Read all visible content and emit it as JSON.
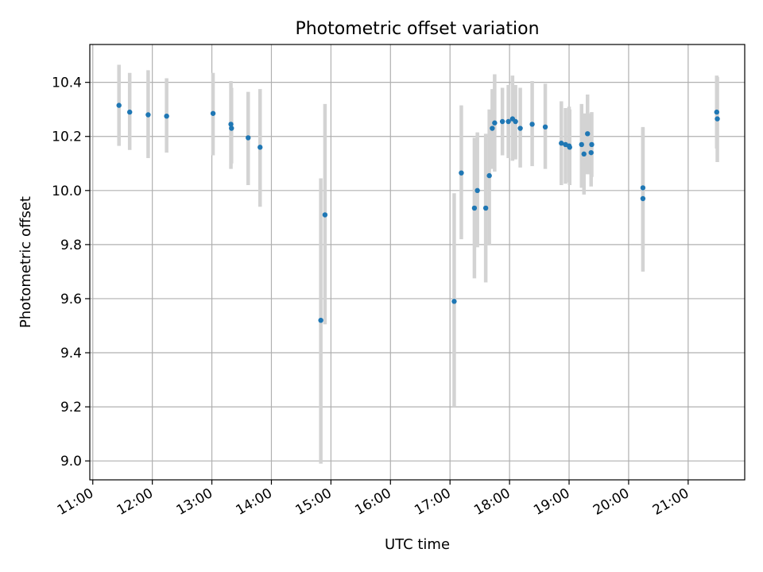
{
  "chart_data": {
    "type": "scatter",
    "title": "Photometric offset variation",
    "xlabel": "UTC time",
    "ylabel": "Photometric offset",
    "grid": true,
    "x_unit": "hours",
    "x_ticks": [
      11,
      12,
      13,
      14,
      15,
      16,
      17,
      18,
      19,
      20,
      21
    ],
    "x_tick_labels": [
      "11:00",
      "12:00",
      "13:00",
      "14:00",
      "15:00",
      "16:00",
      "17:00",
      "18:00",
      "19:00",
      "20:00",
      "21:00"
    ],
    "xlim": [
      10.95,
      21.95
    ],
    "y_ticks": [
      9.0,
      9.2,
      9.4,
      9.6,
      9.8,
      10.0,
      10.2,
      10.4
    ],
    "y_tick_labels": [
      "9.0",
      "9.2",
      "9.4",
      "9.6",
      "9.8",
      "10.0",
      "10.2",
      "10.4"
    ],
    "ylim": [
      8.93,
      10.54
    ],
    "colors": {
      "marker": "#1f77b4",
      "errorbar": "#d3d3d3",
      "grid": "#b0b0b0"
    },
    "series": [
      {
        "points": [
          {
            "x": 11.44,
            "y": 10.315,
            "lo": 10.165,
            "hi": 10.465
          },
          {
            "x": 11.62,
            "y": 10.29,
            "lo": 10.15,
            "hi": 10.435
          },
          {
            "x": 11.93,
            "y": 10.28,
            "lo": 10.12,
            "hi": 10.445
          },
          {
            "x": 12.24,
            "y": 10.275,
            "lo": 10.14,
            "hi": 10.415
          },
          {
            "x": 13.02,
            "y": 10.285,
            "lo": 10.13,
            "hi": 10.435
          },
          {
            "x": 13.32,
            "y": 10.245,
            "lo": 10.08,
            "hi": 10.405
          },
          {
            "x": 13.33,
            "y": 10.23,
            "lo": 10.1,
            "hi": 10.38
          },
          {
            "x": 13.61,
            "y": 10.195,
            "lo": 10.02,
            "hi": 10.365
          },
          {
            "x": 13.81,
            "y": 10.16,
            "lo": 9.94,
            "hi": 10.375
          },
          {
            "x": 14.83,
            "y": 9.52,
            "lo": 8.99,
            "hi": 10.045
          },
          {
            "x": 14.9,
            "y": 9.91,
            "lo": 9.505,
            "hi": 10.32
          },
          {
            "x": 17.07,
            "y": 9.59,
            "lo": 9.2,
            "hi": 9.99
          },
          {
            "x": 17.19,
            "y": 10.065,
            "lo": 9.82,
            "hi": 10.315
          },
          {
            "x": 17.41,
            "y": 9.935,
            "lo": 9.675,
            "hi": 10.195
          },
          {
            "x": 17.46,
            "y": 10.0,
            "lo": 9.79,
            "hi": 10.215
          },
          {
            "x": 17.6,
            "y": 9.935,
            "lo": 9.66,
            "hi": 10.21
          },
          {
            "x": 17.66,
            "y": 10.055,
            "lo": 9.8,
            "hi": 10.3
          },
          {
            "x": 17.71,
            "y": 10.23,
            "lo": 10.08,
            "hi": 10.375
          },
          {
            "x": 17.75,
            "y": 10.25,
            "lo": 10.07,
            "hi": 10.43
          },
          {
            "x": 17.88,
            "y": 10.255,
            "lo": 10.13,
            "hi": 10.38
          },
          {
            "x": 17.98,
            "y": 10.255,
            "lo": 10.12,
            "hi": 10.39
          },
          {
            "x": 18.05,
            "y": 10.265,
            "lo": 10.11,
            "hi": 10.425
          },
          {
            "x": 18.1,
            "y": 10.255,
            "lo": 10.115,
            "hi": 10.39
          },
          {
            "x": 18.18,
            "y": 10.23,
            "lo": 10.085,
            "hi": 10.38
          },
          {
            "x": 18.38,
            "y": 10.245,
            "lo": 10.09,
            "hi": 10.405
          },
          {
            "x": 18.6,
            "y": 10.235,
            "lo": 10.08,
            "hi": 10.395
          },
          {
            "x": 18.87,
            "y": 10.175,
            "lo": 10.02,
            "hi": 10.33
          },
          {
            "x": 18.94,
            "y": 10.17,
            "lo": 10.025,
            "hi": 10.305
          },
          {
            "x": 19.0,
            "y": 10.165,
            "lo": 10.03,
            "hi": 10.31
          },
          {
            "x": 19.01,
            "y": 10.16,
            "lo": 10.02,
            "hi": 10.3
          },
          {
            "x": 19.21,
            "y": 10.17,
            "lo": 10.01,
            "hi": 10.32
          },
          {
            "x": 19.25,
            "y": 10.135,
            "lo": 9.985,
            "hi": 10.285
          },
          {
            "x": 19.31,
            "y": 10.21,
            "lo": 10.06,
            "hi": 10.355
          },
          {
            "x": 19.37,
            "y": 10.14,
            "lo": 10.015,
            "hi": 10.285
          },
          {
            "x": 19.38,
            "y": 10.17,
            "lo": 10.05,
            "hi": 10.29
          },
          {
            "x": 20.24,
            "y": 10.01,
            "lo": 9.785,
            "hi": 10.235
          },
          {
            "x": 20.24,
            "y": 9.97,
            "lo": 9.7,
            "hi": 10.23
          },
          {
            "x": 21.48,
            "y": 10.29,
            "lo": 10.155,
            "hi": 10.425
          },
          {
            "x": 21.49,
            "y": 10.265,
            "lo": 10.105,
            "hi": 10.42
          }
        ]
      }
    ]
  }
}
